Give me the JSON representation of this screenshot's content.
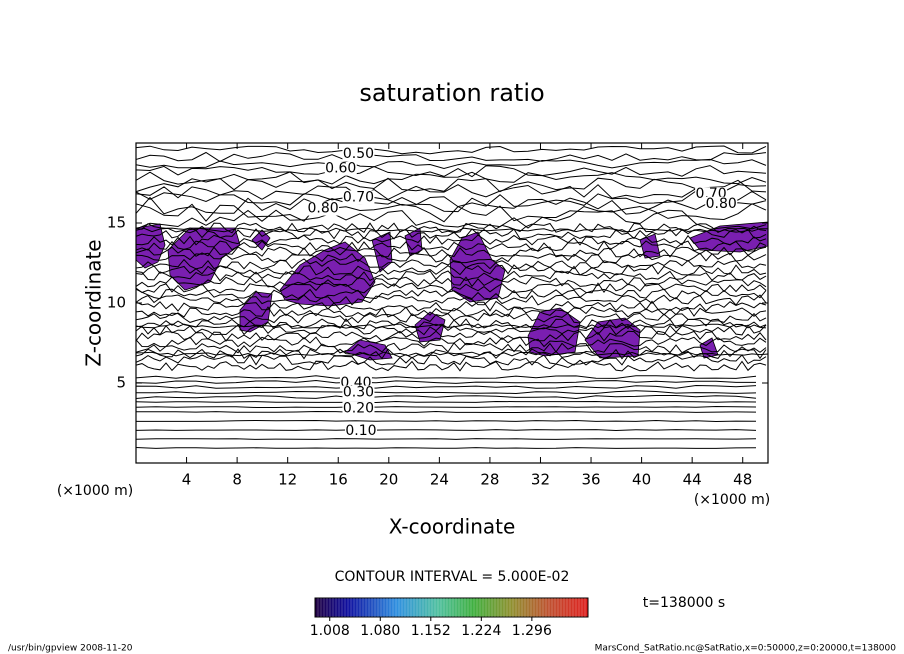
{
  "chart_data": {
    "type": "contour",
    "title": "saturation ratio",
    "x_label": "X-coordinate",
    "y_label": "Z-coordinate",
    "x_unit_label": "(×1000 m)",
    "y_unit_label": "(×1000 m)",
    "xlim": [
      0,
      50
    ],
    "xticks": [
      4,
      8,
      12,
      16,
      20,
      24,
      28,
      32,
      36,
      40,
      44,
      48
    ],
    "ylim": [
      0,
      20
    ],
    "yticks": [
      5,
      10,
      15
    ],
    "contour_labels": [
      {
        "label": "0.50",
        "x": 17.6,
        "y": 19.3
      },
      {
        "label": "0.60",
        "x": 16.2,
        "y": 18.4
      },
      {
        "label": "0.70",
        "x": 17.6,
        "y": 16.6
      },
      {
        "label": "0.80",
        "x": 14.8,
        "y": 15.9
      },
      {
        "label": "0.70",
        "x": 45.5,
        "y": 16.8
      },
      {
        "label": "0.80",
        "x": 46.3,
        "y": 16.2
      },
      {
        "label": "0.40",
        "x": 17.4,
        "y": 5.0
      },
      {
        "label": "0.30",
        "x": 17.6,
        "y": 4.4
      },
      {
        "label": "0.20",
        "x": 17.6,
        "y": 3.4
      },
      {
        "label": "0.10",
        "x": 17.8,
        "y": 2.0
      }
    ],
    "contour_interval_text": "CONTOUR INTERVAL = 5.000E-02",
    "time_text": "t=138000 s",
    "colorbar_lim": [
      0.987,
      1.376
    ],
    "colorbar_ticks": [
      {
        "value": 1.008,
        "label": "1.008"
      },
      {
        "value": 1.08,
        "label": "1.080"
      },
      {
        "value": 1.152,
        "label": "1.152"
      },
      {
        "value": 1.224,
        "label": "1.224"
      },
      {
        "value": 1.296,
        "label": "1.296"
      }
    ],
    "footer_left": "/usr/bin/gpview  2008-11-20",
    "footer_right": "MarsCond_SatRatio.nc@SatRatio,x=0:50000,z=0:20000,t=138000"
  }
}
